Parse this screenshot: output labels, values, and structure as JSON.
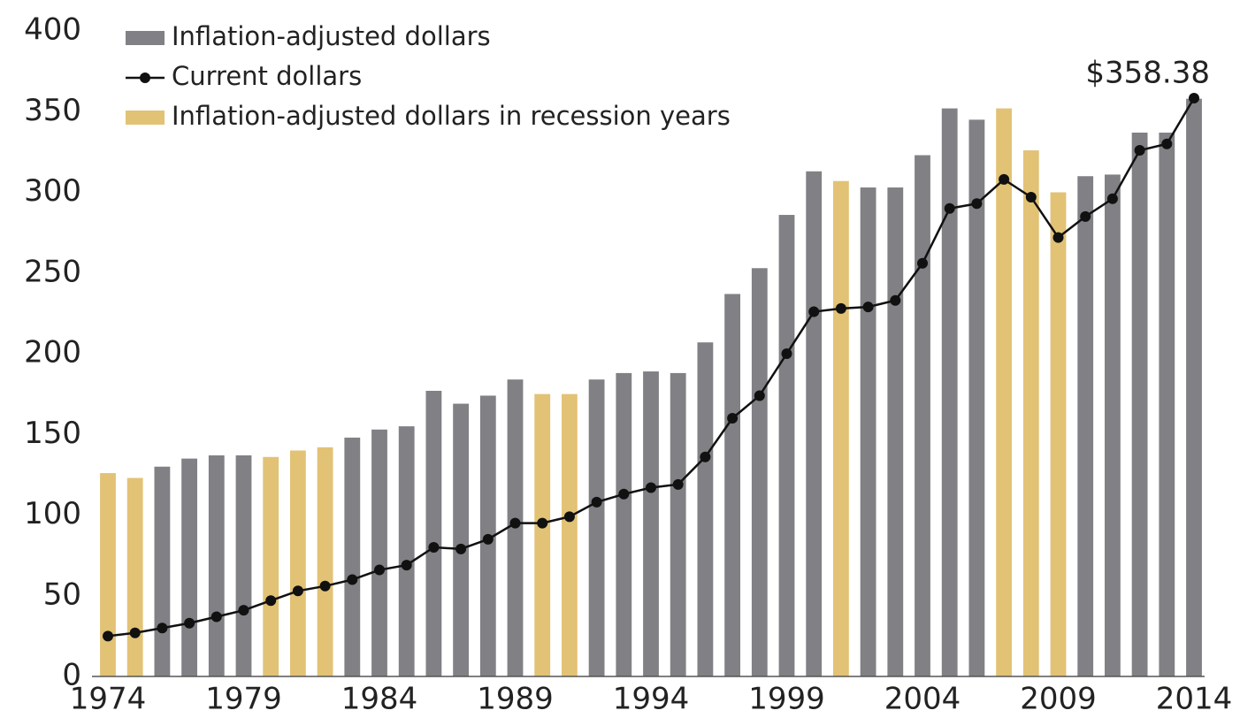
{
  "chart_data": {
    "type": "bar",
    "categories": [
      "1974",
      null,
      null,
      null,
      null,
      "1979",
      null,
      null,
      null,
      null,
      "1984",
      null,
      null,
      null,
      null,
      "1989",
      null,
      null,
      null,
      null,
      "1994",
      null,
      null,
      null,
      null,
      "1999",
      null,
      null,
      null,
      null,
      "2004",
      null,
      null,
      null,
      null,
      "2009",
      null,
      null,
      null,
      null,
      "2014"
    ],
    "series": [
      {
        "name": "Inflation-adjusted dollars",
        "type": "bar",
        "color": "#808085",
        "values": [
          null,
          null,
          130,
          135,
          137,
          137,
          null,
          null,
          null,
          148,
          153,
          155,
          177,
          169,
          174,
          184,
          null,
          null,
          184,
          188,
          189,
          188,
          207,
          237,
          253,
          286,
          313,
          null,
          303,
          303,
          323,
          352,
          345,
          null,
          null,
          null,
          310,
          311,
          337,
          337,
          358
        ]
      },
      {
        "name": "Current dollars",
        "type": "line",
        "color": "#111111",
        "values": [
          25,
          27,
          30,
          33,
          37,
          41,
          47,
          53,
          56,
          60,
          66,
          69,
          80,
          79,
          85,
          95,
          95,
          99,
          108,
          113,
          117,
          119,
          136,
          160,
          174,
          200,
          226,
          228,
          229,
          233,
          256,
          290,
          293,
          308,
          297,
          272,
          285,
          296,
          326,
          330,
          358.38
        ],
        "value_labels": [
          null,
          null,
          null,
          null,
          null,
          null,
          null,
          null,
          null,
          null,
          null,
          null,
          null,
          null,
          null,
          null,
          null,
          null,
          null,
          null,
          null,
          null,
          null,
          null,
          null,
          null,
          null,
          null,
          null,
          null,
          null,
          null,
          null,
          null,
          null,
          null,
          null,
          null,
          null,
          null,
          "$358.38"
        ]
      },
      {
        "name": "Inflation-adjusted dollars in recession years",
        "type": "bar",
        "color": "#e2c275",
        "values": [
          126,
          123,
          null,
          null,
          null,
          null,
          136,
          140,
          142,
          null,
          null,
          null,
          null,
          null,
          null,
          null,
          175,
          175,
          null,
          null,
          null,
          null,
          null,
          null,
          null,
          null,
          null,
          307,
          null,
          null,
          null,
          null,
          null,
          352,
          326,
          300,
          null,
          null,
          null,
          null,
          null
        ]
      }
    ],
    "ylim": [
      0,
      400
    ],
    "yticks": [
      0,
      50,
      100,
      150,
      200,
      250,
      300,
      350,
      400
    ],
    "grid": false,
    "legend": "top-left"
  }
}
